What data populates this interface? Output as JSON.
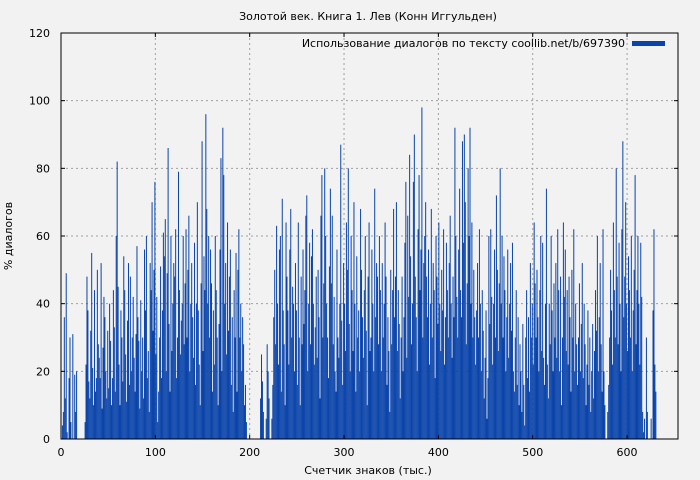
{
  "chart_data": {
    "type": "bar",
    "title": "Золотой век. Книга 1. Лев (Конн Иггульден)",
    "xlabel": "Счетчик знаков (тыс.)",
    "ylabel": "% диалогов",
    "xlim": [
      0,
      654
    ],
    "ylim": [
      0,
      120
    ],
    "xticks": [
      0,
      100,
      200,
      300,
      400,
      500,
      600
    ],
    "yticks": [
      0,
      20,
      40,
      60,
      80,
      100,
      120
    ],
    "grid": true,
    "legend_position": "top-right",
    "series": [
      {
        "name": "Использование диалогов по тексту coollib.net/b/697390",
        "color": "#0a44aa",
        "x_step": 1,
        "values": [
          0,
          4,
          8,
          36,
          12,
          49,
          2,
          0,
          18,
          30,
          5,
          0,
          31,
          0,
          19,
          8,
          20,
          0,
          0,
          0,
          0,
          0,
          0,
          0,
          0,
          5,
          22,
          48,
          38,
          17,
          12,
          32,
          55,
          21,
          10,
          44,
          14,
          18,
          50,
          28,
          24,
          18,
          52,
          9,
          27,
          42,
          36,
          20,
          12,
          32,
          15,
          40,
          29,
          10,
          18,
          44,
          33,
          14,
          60,
          82,
          45,
          22,
          10,
          38,
          30,
          17,
          54,
          44,
          25,
          11,
          35,
          52,
          16,
          48,
          20,
          30,
          42,
          24,
          14,
          31,
          57,
          36,
          29,
          9,
          41,
          20,
          30,
          12,
          56,
          38,
          60,
          18,
          26,
          8,
          52,
          44,
          70,
          32,
          50,
          76,
          25,
          42,
          5,
          14,
          30,
          51,
          18,
          38,
          61,
          54,
          65,
          20,
          49,
          86,
          34,
          14,
          60,
          26,
          40,
          52,
          48,
          62,
          18,
          30,
          79,
          44,
          25,
          35,
          40,
          60,
          28,
          46,
          62,
          30,
          50,
          66,
          20,
          40,
          52,
          36,
          24,
          58,
          16,
          40,
          70,
          38,
          22,
          10,
          46,
          88,
          26,
          54,
          44,
          96,
          68,
          40,
          60,
          30,
          56,
          46,
          14,
          38,
          22,
          60,
          44,
          30,
          10,
          34,
          56,
          83,
          20,
          92,
          78,
          40,
          52,
          25,
          64,
          32,
          48,
          56,
          16,
          36,
          8,
          44,
          30,
          55,
          14,
          50,
          62,
          30,
          40,
          20,
          36,
          28,
          10,
          16,
          5,
          0,
          0,
          0,
          0,
          0,
          0,
          0,
          0,
          0,
          0,
          0,
          0,
          0,
          0,
          12,
          25,
          17,
          8,
          0,
          0,
          6,
          28,
          20,
          12,
          0,
          0,
          6,
          16,
          36,
          50,
          28,
          63,
          40,
          22,
          56,
          60,
          14,
          71,
          38,
          28,
          10,
          64,
          48,
          38,
          22,
          56,
          68,
          30,
          45,
          40,
          20,
          52,
          38,
          16,
          64,
          30,
          10,
          48,
          28,
          56,
          34,
          44,
          66,
          72,
          20,
          40,
          58,
          28,
          54,
          62,
          40,
          22,
          33,
          48,
          24,
          50,
          36,
          12,
          66,
          78,
          30,
          46,
          80,
          60,
          40,
          30,
          18,
          51,
          74,
          46,
          66,
          28,
          42,
          20,
          14,
          56,
          30,
          24,
          40,
          87,
          35,
          16,
          52,
          40,
          26,
          64,
          50,
          80,
          34,
          20,
          60,
          44,
          26,
          70,
          40,
          14,
          54,
          30,
          38,
          20,
          68,
          50,
          36,
          24,
          44,
          60,
          32,
          10,
          48,
          64,
          26,
          30,
          56,
          40,
          20,
          74,
          36,
          52,
          48,
          28,
          60,
          44,
          20,
          52,
          30,
          40,
          64,
          48,
          16,
          36,
          26,
          8,
          50,
          28,
          44,
          68,
          36,
          48,
          70,
          26,
          44,
          34,
          12,
          30,
          48,
          20,
          36,
          58,
          76,
          24,
          66,
          42,
          84,
          54,
          28,
          40,
          76,
          90,
          48,
          36,
          20,
          62,
          78,
          44,
          56,
          98,
          30,
          52,
          60,
          70,
          48,
          36,
          56,
          22,
          40,
          68,
          30,
          52,
          44,
          18,
          60,
          48,
          34,
          64,
          40,
          26,
          50,
          38,
          62,
          22,
          36,
          58,
          44,
          30,
          52,
          66,
          40,
          24,
          48,
          36,
          92,
          60,
          42,
          30,
          56,
          74,
          44,
          36,
          88,
          58,
          90,
          70,
          28,
          46,
          80,
          60,
          92,
          40,
          64,
          30,
          50,
          36,
          22,
          38,
          52,
          30,
          62,
          40,
          20,
          44,
          32,
          12,
          24,
          38,
          6,
          18,
          60,
          34,
          62,
          42,
          22,
          40,
          56,
          30,
          72,
          50,
          26,
          46,
          80,
          40,
          60,
          30,
          54,
          44,
          20,
          36,
          56,
          24,
          40,
          52,
          32,
          58,
          20,
          14,
          30,
          44,
          16,
          36,
          10,
          28,
          20,
          8,
          34,
          16,
          4,
          30,
          44,
          18,
          36,
          14,
          52,
          30,
          40,
          22,
          64,
          46,
          30,
          50,
          36,
          20,
          44,
          60,
          26,
          58,
          24,
          16,
          40,
          74,
          22,
          12,
          40,
          28,
          60,
          38,
          20,
          46,
          30,
          52,
          24,
          62,
          44,
          20,
          48,
          10,
          30,
          64,
          42,
          56,
          26,
          44,
          22,
          48,
          36,
          14,
          50,
          30,
          62,
          20,
          40,
          28,
          16,
          30,
          46,
          20,
          34,
          52,
          18,
          40,
          28,
          10,
          22,
          38,
          16,
          30,
          8,
          20,
          34,
          12,
          26,
          44,
          32,
          60,
          20,
          36,
          52,
          28,
          14,
          62,
          20,
          10,
          0,
          0,
          8,
          16,
          30,
          50,
          38,
          22,
          64,
          44,
          30,
          80,
          48,
          28,
          58,
          40,
          20,
          62,
          88,
          36,
          48,
          70,
          40,
          26,
          54,
          44,
          30,
          60,
          20,
          38,
          50,
          78,
          28,
          44,
          60,
          40,
          22,
          58,
          42,
          8,
          2,
          6,
          0,
          30,
          8,
          0,
          0,
          0,
          6,
          0,
          38,
          62,
          22,
          14,
          0
        ]
      }
    ]
  }
}
